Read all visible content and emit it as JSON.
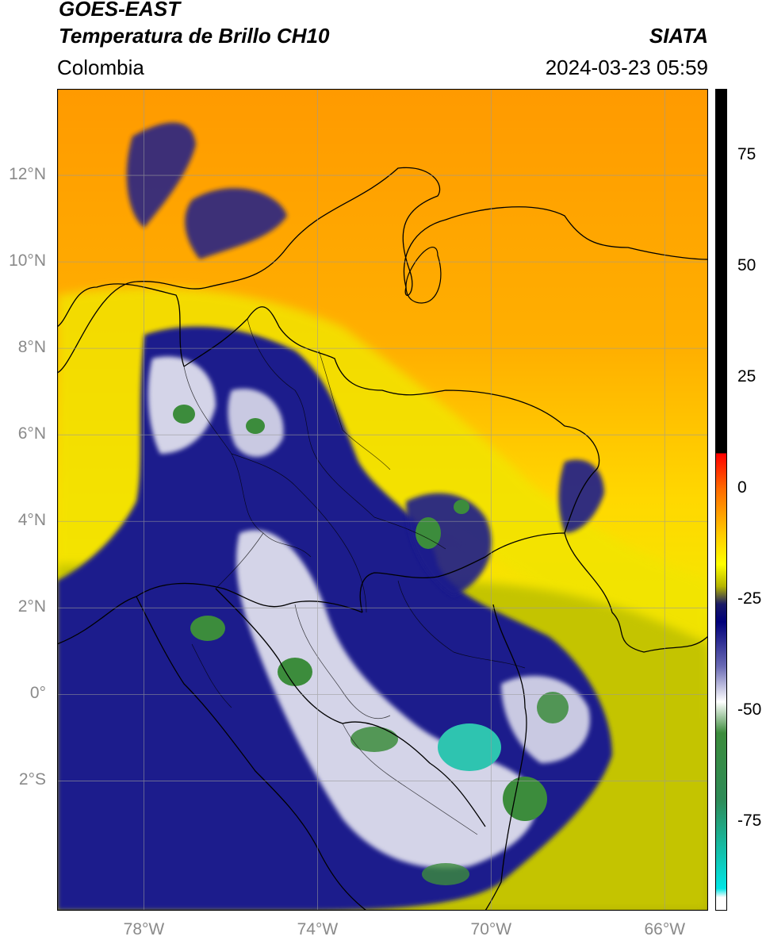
{
  "header": {
    "satellite": "GOES-EAST",
    "product": "Temperatura de Brillo CH10",
    "organization": "SIATA",
    "region": "Colombia",
    "datetime": "2024-03-23 05:59"
  },
  "axes": {
    "lon_range": [
      -80,
      -65
    ],
    "lat_range": [
      -5,
      14
    ],
    "x_ticks": [
      {
        "value": -78,
        "label": "78°W"
      },
      {
        "value": -74,
        "label": "74°W"
      },
      {
        "value": -70,
        "label": "70°W"
      },
      {
        "value": -66,
        "label": "66°W"
      }
    ],
    "y_ticks": [
      {
        "value": 12,
        "label": "12°N"
      },
      {
        "value": 10,
        "label": "10°N"
      },
      {
        "value": 8,
        "label": "8°N"
      },
      {
        "value": 6,
        "label": "6°N"
      },
      {
        "value": 4,
        "label": "4°N"
      },
      {
        "value": 2,
        "label": "2°N"
      },
      {
        "value": 0,
        "label": "0°"
      },
      {
        "value": -2,
        "label": "2°S"
      }
    ],
    "grid": true
  },
  "colorbar": {
    "range": [
      -95,
      90
    ],
    "ticks": [
      {
        "value": 75,
        "label": "75"
      },
      {
        "value": 50,
        "label": "50"
      },
      {
        "value": 25,
        "label": "25"
      },
      {
        "value": 0,
        "label": "0"
      },
      {
        "value": -25,
        "label": "-25"
      },
      {
        "value": -50,
        "label": "-50"
      },
      {
        "value": -75,
        "label": "-75"
      }
    ],
    "stops": [
      {
        "value": 90,
        "color": "#000000"
      },
      {
        "value": 8,
        "color": "#000000"
      },
      {
        "value": 7.9,
        "color": "#ff0000"
      },
      {
        "value": 0,
        "color": "#ff6a00"
      },
      {
        "value": -10,
        "color": "#ffc800"
      },
      {
        "value": -17,
        "color": "#ffff00"
      },
      {
        "value": -22,
        "color": "#b4b400"
      },
      {
        "value": -26,
        "color": "#1a1a66"
      },
      {
        "value": -30,
        "color": "#00007a"
      },
      {
        "value": -40,
        "color": "#6a6ab4"
      },
      {
        "value": -48,
        "color": "#ffffff"
      },
      {
        "value": -55,
        "color": "#3c8c3c"
      },
      {
        "value": -70,
        "color": "#2e8b57"
      },
      {
        "value": -90,
        "color": "#00e5e5"
      },
      {
        "value": -92,
        "color": "#ffffff"
      },
      {
        "value": -95,
        "color": "#ffffff"
      }
    ]
  },
  "map_colors": {
    "warm_orange": "#ff9a00",
    "yellow": "#f5e600",
    "olive": "#c8c800",
    "cold_navy": "#1a1a8c",
    "very_cold_white": "#e8e8f2",
    "coldest_green": "#3c8c3c",
    "coldest_teal": "#2ec4b0",
    "border_line": "#000000",
    "grid_line": "#9a9a9a"
  }
}
